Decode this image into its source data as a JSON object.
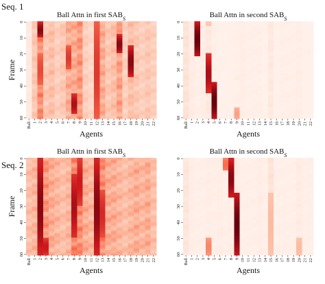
{
  "figure": {
    "row_labels": [
      "Seq. 1",
      "Seq. 2"
    ]
  },
  "colors": {
    "low": "#fff5f0",
    "mid_light": "#fcbba1",
    "mid": "#fb6a4a",
    "high": "#cb181d",
    "max": "#67000d",
    "tick": "#333333"
  },
  "chart_data": [
    {
      "type": "heatmap",
      "sequence": "Seq. 1",
      "title": "Ball Attn in first SAB",
      "title_subscript": "S",
      "xlabel": "Agents",
      "ylabel": "Frame",
      "x_categories": [
        "Ball",
        "1",
        "2",
        "3",
        "4",
        "5",
        "6",
        "7",
        "8",
        "9",
        "10",
        "11",
        "12",
        "13",
        "14",
        "15",
        "16",
        "17",
        "18",
        "19",
        "20",
        "21",
        "22"
      ],
      "y_ticks": [
        0,
        10,
        20,
        30,
        40,
        50,
        60
      ],
      "y_range": [
        0,
        61
      ],
      "value_range": [
        0,
        1
      ],
      "column_intensity": [
        0.08,
        0.3,
        0.6,
        0.3,
        0.35,
        0.25,
        0.3,
        0.45,
        0.45,
        0.55,
        0.25,
        0.2,
        0.5,
        0.45,
        0.3,
        0.35,
        0.5,
        0.25,
        0.35,
        0.3,
        0.25,
        0.3,
        0.25
      ],
      "hotspots": [
        {
          "agent": "2",
          "frames": [
            0,
            10
          ],
          "value": 0.95
        },
        {
          "agent": "2",
          "frames": [
            20,
            40
          ],
          "value": 0.7
        },
        {
          "agent": "7",
          "frames": [
            15,
            30
          ],
          "value": 0.75
        },
        {
          "agent": "8",
          "frames": [
            45,
            58
          ],
          "value": 0.9
        },
        {
          "agent": "12",
          "frames": [
            0,
            61
          ],
          "value": 0.75
        },
        {
          "agent": "16",
          "frames": [
            8,
            20
          ],
          "value": 0.95
        },
        {
          "agent": "18",
          "frames": [
            15,
            35
          ],
          "value": 0.95
        }
      ]
    },
    {
      "type": "heatmap",
      "sequence": "Seq. 1",
      "title": "Ball Attn in second SAB",
      "title_subscript": "S",
      "xlabel": "Agents",
      "ylabel": "",
      "x_categories": [
        "Ball",
        "1",
        "2",
        "3",
        "4",
        "5",
        "6",
        "7",
        "8",
        "9",
        "10",
        "11",
        "12",
        "13",
        "14",
        "15",
        "16",
        "17",
        "18",
        "19",
        "20",
        "21",
        "22"
      ],
      "y_ticks": [
        0,
        10,
        20,
        30,
        40,
        50,
        60
      ],
      "y_range": [
        0,
        61
      ],
      "value_range": [
        0,
        1
      ],
      "column_intensity": [
        0.12,
        0.06,
        0.04,
        0.05,
        0.08,
        0.04,
        0.03,
        0.03,
        0.03,
        0.04,
        0.05,
        0.04,
        0.04,
        0.04,
        0.03,
        0.08,
        0.03,
        0.04,
        0.04,
        0.04,
        0.05,
        0.03,
        0.03
      ],
      "hotspots": [
        {
          "agent": "2",
          "frames": [
            0,
            22
          ],
          "value": 1.0
        },
        {
          "agent": "4",
          "frames": [
            20,
            45
          ],
          "value": 0.9
        },
        {
          "agent": "5",
          "frames": [
            38,
            61
          ],
          "value": 1.0
        },
        {
          "agent": "9",
          "frames": [
            54,
            61
          ],
          "value": 0.4
        },
        {
          "agent": "4",
          "frames": [
            0,
            3
          ],
          "value": 0.25
        }
      ]
    },
    {
      "type": "heatmap",
      "sequence": "Seq. 2",
      "title": "Ball Attn in first SAB",
      "title_subscript": "S",
      "xlabel": "Agents",
      "ylabel": "Frame",
      "x_categories": [
        "Ball",
        "1",
        "2",
        "3",
        "4",
        "5",
        "6",
        "7",
        "8",
        "9",
        "10",
        "11",
        "12",
        "13",
        "14",
        "15",
        "16",
        "17",
        "18",
        "19",
        "20",
        "21",
        "22"
      ],
      "y_ticks": [
        0,
        10,
        20,
        30,
        40,
        50,
        60
      ],
      "y_range": [
        0,
        61
      ],
      "value_range": [
        0,
        1
      ],
      "column_intensity": [
        0.35,
        0.4,
        0.75,
        0.55,
        0.45,
        0.4,
        0.35,
        0.4,
        0.65,
        0.6,
        0.45,
        0.4,
        0.75,
        0.6,
        0.45,
        0.45,
        0.4,
        0.35,
        0.4,
        0.45,
        0.4,
        0.45,
        0.35
      ],
      "hotspots": [
        {
          "agent": "2",
          "frames": [
            0,
            61
          ],
          "value": 0.95
        },
        {
          "agent": "8",
          "frames": [
            10,
            50
          ],
          "value": 0.9
        },
        {
          "agent": "9",
          "frames": [
            0,
            30
          ],
          "value": 0.85
        },
        {
          "agent": "12",
          "frames": [
            0,
            61
          ],
          "value": 0.95
        },
        {
          "agent": "13",
          "frames": [
            20,
            50
          ],
          "value": 0.8
        },
        {
          "agent": "3",
          "frames": [
            50,
            61
          ],
          "value": 0.85
        }
      ]
    },
    {
      "type": "heatmap",
      "sequence": "Seq. 2",
      "title": "Ball Attn in second SAB",
      "title_subscript": "S",
      "xlabel": "Agents",
      "ylabel": "",
      "x_categories": [
        "Ball",
        "1",
        "2",
        "3",
        "4",
        "5",
        "6",
        "7",
        "8",
        "9",
        "10",
        "11",
        "12",
        "13",
        "14",
        "15",
        "16",
        "17",
        "18",
        "19",
        "20",
        "21",
        "22"
      ],
      "y_ticks": [
        0,
        10,
        20,
        30,
        40,
        50,
        60
      ],
      "y_range": [
        0,
        61
      ],
      "value_range": [
        0,
        1
      ],
      "column_intensity": [
        0.1,
        0.05,
        0.04,
        0.04,
        0.05,
        0.04,
        0.05,
        0.04,
        0.05,
        0.06,
        0.04,
        0.04,
        0.04,
        0.05,
        0.04,
        0.12,
        0.04,
        0.04,
        0.04,
        0.04,
        0.06,
        0.04,
        0.04
      ],
      "hotspots": [
        {
          "agent": "7",
          "frames": [
            0,
            8
          ],
          "value": 0.6
        },
        {
          "agent": "8",
          "frames": [
            0,
            25
          ],
          "value": 0.95
        },
        {
          "agent": "9",
          "frames": [
            22,
            61
          ],
          "value": 1.0
        },
        {
          "agent": "4",
          "frames": [
            50,
            61
          ],
          "value": 0.5
        },
        {
          "agent": "15",
          "frames": [
            22,
            61
          ],
          "value": 0.3
        },
        {
          "agent": "20",
          "frames": [
            50,
            61
          ],
          "value": 0.3
        }
      ]
    }
  ]
}
